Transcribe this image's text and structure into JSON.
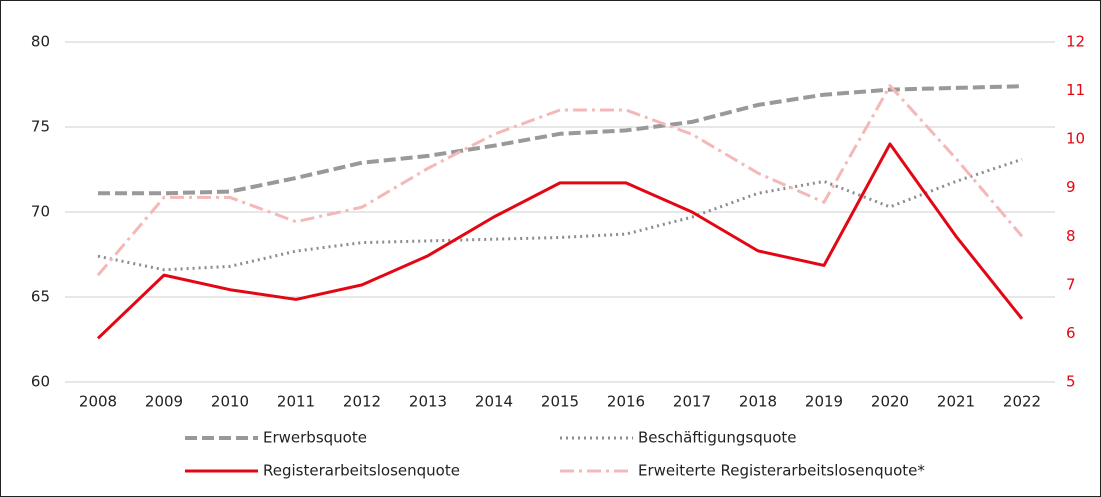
{
  "chart_data": {
    "type": "line",
    "x": [
      "2008",
      "2009",
      "2010",
      "2011",
      "2012",
      "2013",
      "2014",
      "2015",
      "2016",
      "2017",
      "2018",
      "2019",
      "2020",
      "2021",
      "2022"
    ],
    "ylim": [
      60,
      80
    ],
    "yticks": [
      60,
      65,
      70,
      75,
      80
    ],
    "y2lim": [
      5,
      12
    ],
    "y2ticks": [
      5,
      6,
      7,
      8,
      9,
      10,
      11,
      12
    ],
    "grid": true,
    "legend": "bottom",
    "series": [
      {
        "name": "Erwerbsquote",
        "color": "#999999",
        "style": "dashed",
        "values": [
          71.1,
          71.1,
          71.2,
          72.0,
          72.9,
          73.3,
          73.9,
          74.6,
          74.8,
          75.3,
          76.3,
          76.9,
          77.2,
          77.3,
          77.4
        ]
      },
      {
        "name": "Beschäftigungsquote",
        "color": "#8c8c8c",
        "style": "dotted",
        "values": [
          67.4,
          66.6,
          66.8,
          67.7,
          68.2,
          68.3,
          68.4,
          68.5,
          68.7,
          69.7,
          71.1,
          71.8,
          70.3,
          71.8,
          73.1
        ]
      },
      {
        "name": "Registerarbeitslosenquote",
        "color": "#e30613",
        "style": "solid",
        "axis": "y2",
        "values": [
          5.9,
          7.2,
          6.9,
          6.7,
          7.0,
          7.6,
          8.4,
          9.1,
          9.1,
          8.5,
          7.7,
          7.4,
          9.9,
          8.0,
          6.3
        ]
      },
      {
        "name": "Erweiterte Registerarbeitslosenquote*",
        "color": "#f4b8b8",
        "style": "dashdot",
        "axis": "y2",
        "values": [
          7.2,
          8.8,
          8.8,
          8.3,
          8.6,
          9.4,
          10.1,
          10.6,
          10.6,
          10.1,
          9.3,
          8.7,
          11.1,
          9.6,
          8.0
        ]
      }
    ]
  }
}
